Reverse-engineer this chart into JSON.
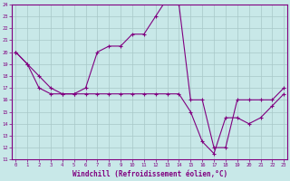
{
  "xlabel": "Windchill (Refroidissement éolien,°C)",
  "background_color": "#c8e8e8",
  "line_color": "#800080",
  "grid_color": "#a8c8c8",
  "xmin": 0,
  "xmax": 23,
  "ymin": 11,
  "ymax": 24,
  "hours": [
    0,
    1,
    2,
    3,
    4,
    5,
    6,
    7,
    8,
    9,
    10,
    11,
    12,
    13,
    14,
    15,
    16,
    17,
    18,
    19,
    20,
    21,
    22,
    23
  ],
  "temp1": [
    20,
    19,
    18,
    17,
    16.5,
    16.5,
    17,
    20,
    20.5,
    20.5,
    21.5,
    21.5,
    23,
    24.5,
    24,
    16,
    16,
    12,
    12,
    16,
    16,
    16,
    16,
    17
  ],
  "temp2": [
    20,
    19,
    17,
    16.5,
    16.5,
    16.5,
    16.5,
    16.5,
    16.5,
    16.5,
    16.5,
    16.5,
    16.5,
    16.5,
    16.5,
    15,
    12.5,
    11.5,
    14.5,
    14.5,
    14,
    14.5,
    15.5,
    16.5
  ]
}
